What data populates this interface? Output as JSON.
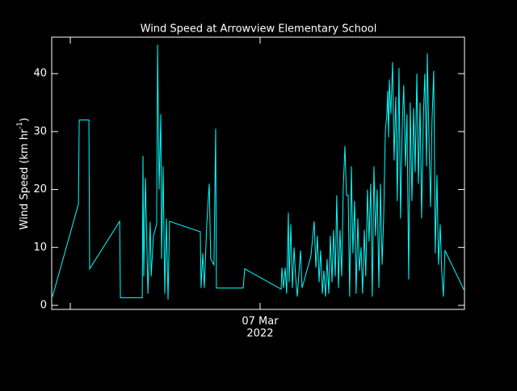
{
  "chart_data": {
    "type": "line",
    "title": "Wind Speed at Arrowview Elementary School",
    "ylabel": [
      "Wind Speed (km hr",
      "-1",
      ")"
    ],
    "x": [
      5.906,
      6.043,
      6.047,
      6.098,
      6.102,
      6.26,
      6.264,
      6.379,
      6.383,
      6.387,
      6.396,
      6.409,
      6.421,
      6.426,
      6.438,
      6.455,
      6.46,
      6.468,
      6.477,
      6.481,
      6.489,
      6.498,
      6.506,
      6.515,
      6.523,
      6.685,
      6.689,
      6.698,
      6.706,
      6.719,
      6.732,
      6.74,
      6.757,
      6.766,
      6.77,
      6.911,
      6.919,
      7.111,
      7.115,
      7.123,
      7.132,
      7.14,
      7.149,
      7.153,
      7.162,
      7.17,
      7.179,
      7.187,
      7.196,
      7.213,
      7.221,
      7.268,
      7.285,
      7.294,
      7.302,
      7.311,
      7.319,
      7.328,
      7.336,
      7.345,
      7.353,
      7.362,
      7.37,
      7.379,
      7.387,
      7.396,
      7.404,
      7.413,
      7.421,
      7.43,
      7.438,
      7.447,
      7.455,
      7.464,
      7.472,
      7.481,
      7.489,
      7.498,
      7.506,
      7.515,
      7.523,
      7.532,
      7.54,
      7.549,
      7.557,
      7.566,
      7.574,
      7.583,
      7.591,
      7.6,
      7.608,
      7.617,
      7.626,
      7.634,
      7.643,
      7.651,
      7.66,
      7.668,
      7.672,
      7.677,
      7.681,
      7.689,
      7.698,
      7.706,
      7.715,
      7.723,
      7.732,
      7.74,
      7.749,
      7.757,
      7.766,
      7.774,
      7.783,
      7.791,
      7.8,
      7.809,
      7.817,
      7.826,
      7.834,
      7.843,
      7.851,
      7.86,
      7.868,
      7.877,
      7.881,
      7.889,
      7.898,
      7.906,
      7.915,
      7.923,
      7.932,
      7.94,
      7.949,
      7.957,
      7.966,
      7.974,
      8.077
    ],
    "series": [
      {
        "name": "Wind Speed",
        "color": "#00ffff",
        "values": [
          1.5,
          17.5,
          32,
          32,
          6.3,
          14.5,
          1.3,
          1.3,
          25.8,
          5,
          22,
          2,
          14.4,
          5,
          12,
          14,
          45,
          20,
          33,
          8,
          24,
          2,
          15,
          1,
          14.5,
          12.7,
          3,
          9,
          3,
          14,
          21,
          8,
          7,
          30.5,
          3,
          3,
          6.3,
          2.8,
          6.5,
          3,
          6.5,
          2,
          16,
          4,
          14,
          3,
          10,
          5,
          1.5,
          9.5,
          3,
          8.5,
          14.5,
          6.5,
          12,
          4,
          9.5,
          2,
          6,
          1.5,
          8,
          2,
          12,
          4,
          13,
          5,
          19,
          3,
          13,
          5,
          20,
          27.5,
          19,
          19,
          1.5,
          24,
          9,
          18,
          2,
          15,
          6,
          10,
          2,
          13,
          5,
          20,
          11,
          21,
          1.5,
          24,
          12,
          20,
          3,
          21,
          7,
          15,
          30,
          33,
          37,
          29,
          39,
          33,
          42,
          25,
          36,
          18,
          41,
          15,
          31,
          38,
          24,
          33,
          4.5,
          35,
          18,
          34,
          23,
          40,
          21,
          35,
          15,
          32,
          40,
          24,
          43.5,
          30,
          17,
          32,
          40.5,
          9,
          22.5,
          7,
          14,
          6,
          1.5,
          9.5,
          2.5
        ]
      }
    ],
    "xlim": [
      5.902,
      8.077
    ],
    "xticks": [
      {
        "value": 6,
        "label": null
      },
      {
        "value": 7,
        "label": [
          "07 Mar",
          "2022"
        ]
      }
    ],
    "ylim": [
      -0.7,
      46.3
    ],
    "yticks": [
      0,
      10,
      20,
      30,
      40
    ]
  }
}
